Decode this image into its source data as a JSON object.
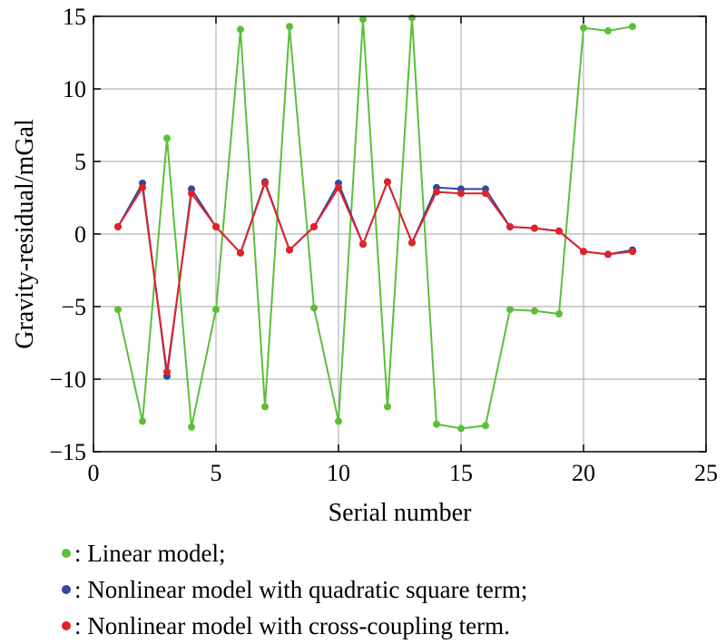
{
  "chart_data": {
    "type": "line",
    "title": "",
    "xlabel": "Serial number",
    "ylabel": "Gravity-residual/mGal",
    "xlim": [
      0,
      25
    ],
    "ylim": [
      -15,
      15
    ],
    "xticks": [
      "0",
      "5",
      "10",
      "15",
      "20",
      "25"
    ],
    "xtick_values": [
      0,
      5,
      10,
      15,
      20,
      25
    ],
    "yticks": [
      "15",
      "10",
      "5",
      "0",
      "−5",
      "−10",
      "−15"
    ],
    "ytick_values": [
      15,
      10,
      5,
      0,
      -5,
      -10,
      -15
    ],
    "grid": true,
    "x": [
      1,
      2,
      3,
      4,
      5,
      6,
      7,
      8,
      9,
      10,
      11,
      12,
      13,
      14,
      15,
      16,
      17,
      18,
      19,
      20,
      21,
      22
    ],
    "series": [
      {
        "name": "Linear model",
        "color": "#5cbf3a",
        "values": [
          -5.2,
          -12.9,
          6.6,
          -13.3,
          -5.2,
          14.1,
          -11.9,
          14.3,
          -5.1,
          -12.9,
          14.8,
          -11.9,
          14.9,
          -13.1,
          -13.4,
          -13.2,
          -5.2,
          -5.3,
          -5.5,
          14.2,
          14.0,
          14.3
        ]
      },
      {
        "name": "Nonlinear model with quadratic square term",
        "color": "#2e4aa0",
        "values": [
          0.5,
          3.5,
          -9.8,
          3.1,
          0.5,
          -1.3,
          3.6,
          -1.1,
          0.5,
          3.5,
          -0.7,
          3.6,
          -0.6,
          3.2,
          3.1,
          3.1,
          0.5,
          0.4,
          0.2,
          -1.2,
          -1.4,
          -1.1
        ]
      },
      {
        "name": "Nonlinear model with cross-coupling term",
        "color": "#e0222a",
        "values": [
          0.5,
          3.2,
          -9.5,
          2.8,
          0.5,
          -1.3,
          3.5,
          -1.1,
          0.5,
          3.2,
          -0.7,
          3.6,
          -0.6,
          2.9,
          2.8,
          2.8,
          0.5,
          0.4,
          0.2,
          -1.2,
          -1.4,
          -1.2
        ]
      }
    ]
  },
  "legend": [
    {
      "text": ": Linear model;",
      "color": "#5cbf3a"
    },
    {
      "text": ": Nonlinear model with quadratic square term;",
      "color": "#2e4aa0"
    },
    {
      "text": ": Nonlinear model with cross-coupling term.",
      "color": "#e0222a"
    }
  ]
}
